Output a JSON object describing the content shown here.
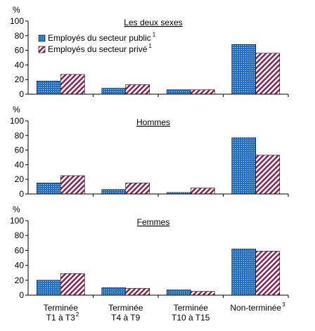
{
  "chart_data": [
    {
      "type": "bar",
      "title": "Les deux sexes",
      "ylabel": "%",
      "ylim": [
        0,
        100
      ],
      "yticks": [
        0,
        20,
        40,
        60,
        80,
        100
      ],
      "legend": "top-left",
      "series": [
        {
          "name": "Employés du secteur public",
          "name_note": "1",
          "color": "#1f6fd1",
          "pattern": "dots",
          "values": [
            18,
            8,
            6,
            68
          ]
        },
        {
          "name": "Employés du secteur privé",
          "name_note": "1",
          "color": "#8b2252",
          "pattern": "hatch",
          "values": [
            27,
            13,
            6,
            56
          ]
        }
      ]
    },
    {
      "type": "bar",
      "title": "Hommes",
      "ylabel": "%",
      "ylim": [
        0,
        100
      ],
      "yticks": [
        0,
        20,
        40,
        60,
        80,
        100
      ],
      "series": [
        {
          "color": "#1f6fd1",
          "pattern": "dots",
          "values": [
            15,
            6,
            2,
            77
          ]
        },
        {
          "color": "#8b2252",
          "pattern": "hatch",
          "values": [
            25,
            15,
            8,
            53
          ]
        }
      ]
    },
    {
      "type": "bar",
      "title": "Femmes",
      "ylabel": "%",
      "ylim": [
        0,
        100
      ],
      "yticks": [
        0,
        20,
        40,
        60,
        80,
        100
      ],
      "categories": [
        [
          "Terminée",
          "T1 à T3"
        ],
        [
          "Terminée",
          "T4 à T9"
        ],
        [
          "Terminée",
          "T10 à T15"
        ],
        [
          "Non-terminée"
        ]
      ],
      "category_notes": [
        "2",
        null,
        null,
        "3"
      ],
      "series": [
        {
          "color": "#1f6fd1",
          "pattern": "dots",
          "values": [
            20,
            10,
            7,
            62
          ]
        },
        {
          "color": "#8b2252",
          "pattern": "hatch",
          "values": [
            29,
            9,
            5,
            59
          ]
        }
      ]
    }
  ]
}
